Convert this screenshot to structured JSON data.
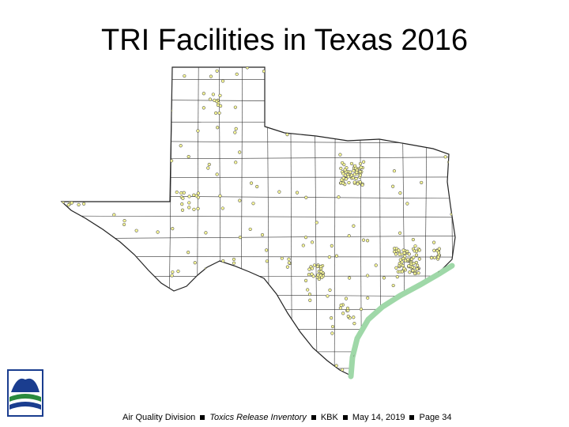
{
  "slide": {
    "title": "TRI Facilities in Texas 2016",
    "footer": {
      "division": "Air Quality Division",
      "program": "Toxics Release Inventory",
      "author": "KBK",
      "date": "May 14, 2019",
      "page": "Page 34"
    }
  }
}
